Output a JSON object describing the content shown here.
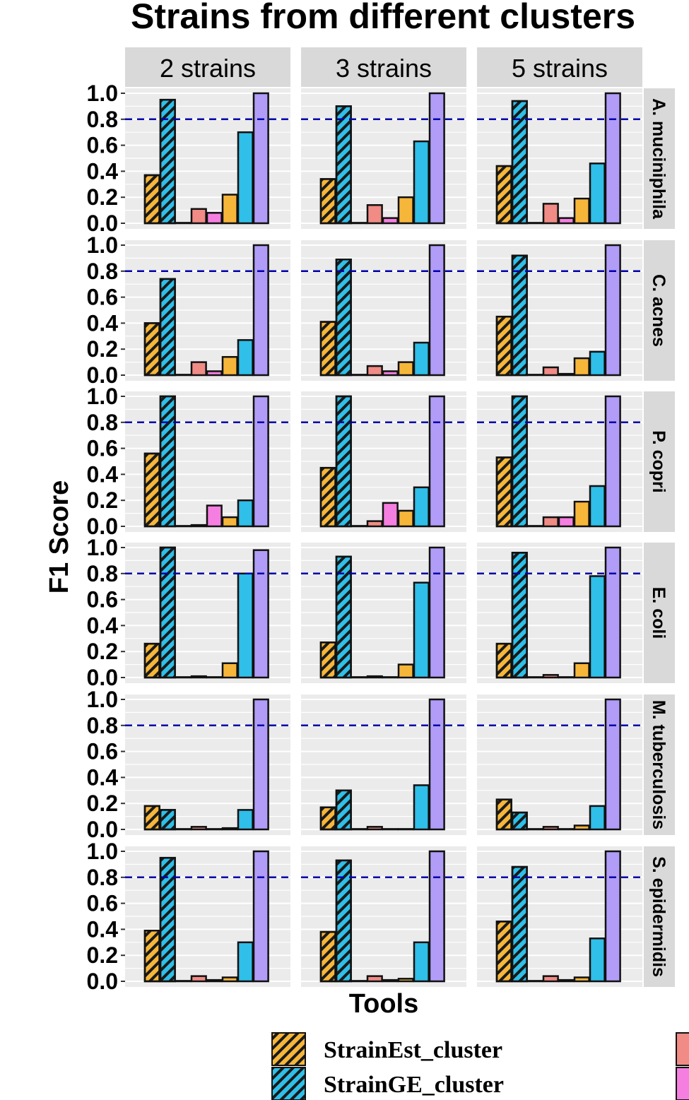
{
  "chart_data": {
    "type": "bar",
    "title": "Strains from different clusters",
    "xlabel": "Tools",
    "ylabel": "F1 Score",
    "ylim": [
      0,
      1
    ],
    "yticks": [
      "0.0",
      "0.2",
      "0.4",
      "0.6",
      "0.8",
      "1.0"
    ],
    "reference_line": 0.8,
    "reference_line_color": "#0000aa",
    "panel_background": "#ebebeb",
    "strip_background": "#d9d9d9",
    "facet_columns": [
      "2 strains",
      "3 strains",
      "5 strains"
    ],
    "facet_rows": [
      "A. muciniphila",
      "C. acnes",
      "P. copri",
      "E. coli",
      "M. tuberculosis",
      "S. epidermidis"
    ],
    "tools": [
      {
        "name": "StrainEst_cluster",
        "color": "#f6b63a",
        "hatched": true
      },
      {
        "name": "StrainGE_cluster",
        "color": "#2fbfe8",
        "hatched": true
      },
      {
        "name": "",
        "color": "#f6b63a",
        "hatched": false
      },
      {
        "name": "",
        "color": "#f08b85",
        "hatched": false
      },
      {
        "name": "",
        "color": "#f57fe0",
        "hatched": false
      },
      {
        "name": "",
        "color": "#f6b63a",
        "hatched": false
      },
      {
        "name": "",
        "color": "#2fbfe8",
        "hatched": false
      },
      {
        "name": "",
        "color": "#b19cf7",
        "hatched": false
      }
    ],
    "values": [
      [
        [
          0.37,
          0.95,
          0.0,
          0.11,
          0.08,
          0.22,
          0.7,
          1.0
        ],
        [
          0.34,
          0.9,
          0.0,
          0.14,
          0.04,
          0.2,
          0.63,
          1.0
        ],
        [
          0.44,
          0.94,
          0.0,
          0.15,
          0.04,
          0.19,
          0.46,
          1.0
        ]
      ],
      [
        [
          0.4,
          0.74,
          0.0,
          0.1,
          0.03,
          0.14,
          0.27,
          1.0
        ],
        [
          0.41,
          0.89,
          0.0,
          0.07,
          0.03,
          0.1,
          0.25,
          1.0
        ],
        [
          0.45,
          0.92,
          0.0,
          0.06,
          0.01,
          0.13,
          0.18,
          1.0
        ]
      ],
      [
        [
          0.56,
          1.0,
          0.0,
          0.01,
          0.16,
          0.07,
          0.2,
          1.0
        ],
        [
          0.45,
          1.0,
          0.0,
          0.04,
          0.18,
          0.12,
          0.3,
          1.0
        ],
        [
          0.53,
          1.0,
          0.0,
          0.07,
          0.07,
          0.19,
          0.31,
          1.0
        ]
      ],
      [
        [
          0.26,
          1.0,
          0.0,
          0.01,
          0.0,
          0.11,
          0.8,
          0.98
        ],
        [
          0.27,
          0.93,
          0.0,
          0.01,
          0.0,
          0.1,
          0.73,
          1.0
        ],
        [
          0.26,
          0.96,
          0.0,
          0.02,
          0.0,
          0.11,
          0.78,
          1.0
        ]
      ],
      [
        [
          0.18,
          0.15,
          0.0,
          0.02,
          0.0,
          0.01,
          0.15,
          1.0
        ],
        [
          0.17,
          0.3,
          0.0,
          0.02,
          0.0,
          0.0,
          0.34,
          1.0
        ],
        [
          0.23,
          0.13,
          0.0,
          0.02,
          0.0,
          0.03,
          0.18,
          1.0
        ]
      ],
      [
        [
          0.39,
          0.95,
          0.0,
          0.04,
          0.01,
          0.03,
          0.3,
          1.0
        ],
        [
          0.38,
          0.93,
          0.0,
          0.04,
          0.01,
          0.02,
          0.3,
          1.0
        ],
        [
          0.46,
          0.88,
          0.0,
          0.04,
          0.01,
          0.03,
          0.33,
          1.0
        ]
      ]
    ]
  }
}
